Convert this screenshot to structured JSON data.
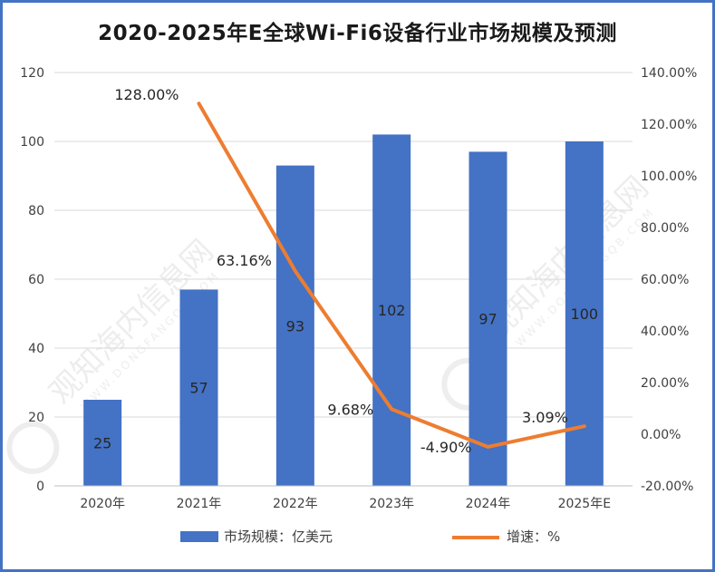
{
  "chart_data": {
    "type": "bar",
    "title": "2020-2025年E全球Wi-Fi6设备行业市场规模及预测",
    "categories": [
      "2020年",
      "2021年",
      "2022年",
      "2023年",
      "2024年",
      "2025年E"
    ],
    "series": [
      {
        "name": "市场规模：亿美元",
        "type": "bar",
        "axis": "left",
        "values": [
          25,
          57,
          93,
          102,
          97,
          100
        ],
        "labels": [
          "25",
          "57",
          "93",
          "102",
          "97",
          "100"
        ],
        "color": "#4472c4"
      },
      {
        "name": "增速：%",
        "type": "line",
        "axis": "right",
        "values": [
          null,
          128.0,
          63.16,
          9.68,
          -4.9,
          3.09
        ],
        "labels": [
          "",
          "128.00%",
          "63.16%",
          "9.68%",
          "-4.90%",
          "3.09%"
        ],
        "color": "#ed7d31"
      }
    ],
    "y_left": {
      "min": 0,
      "max": 120,
      "step": 20,
      "ticks": [
        "0",
        "20",
        "40",
        "60",
        "80",
        "100",
        "120"
      ]
    },
    "y_right": {
      "min": -20,
      "max": 140,
      "step": 20,
      "ticks": [
        "-20.00%",
        "0.00%",
        "20.00%",
        "40.00%",
        "60.00%",
        "80.00%",
        "100.00%",
        "120.00%",
        "140.00%"
      ]
    },
    "grid": true,
    "legend_position": "bottom"
  },
  "watermark": {
    "text": "观知海内信息网",
    "subtext": "WWW.DONGFANGQB.COM"
  }
}
